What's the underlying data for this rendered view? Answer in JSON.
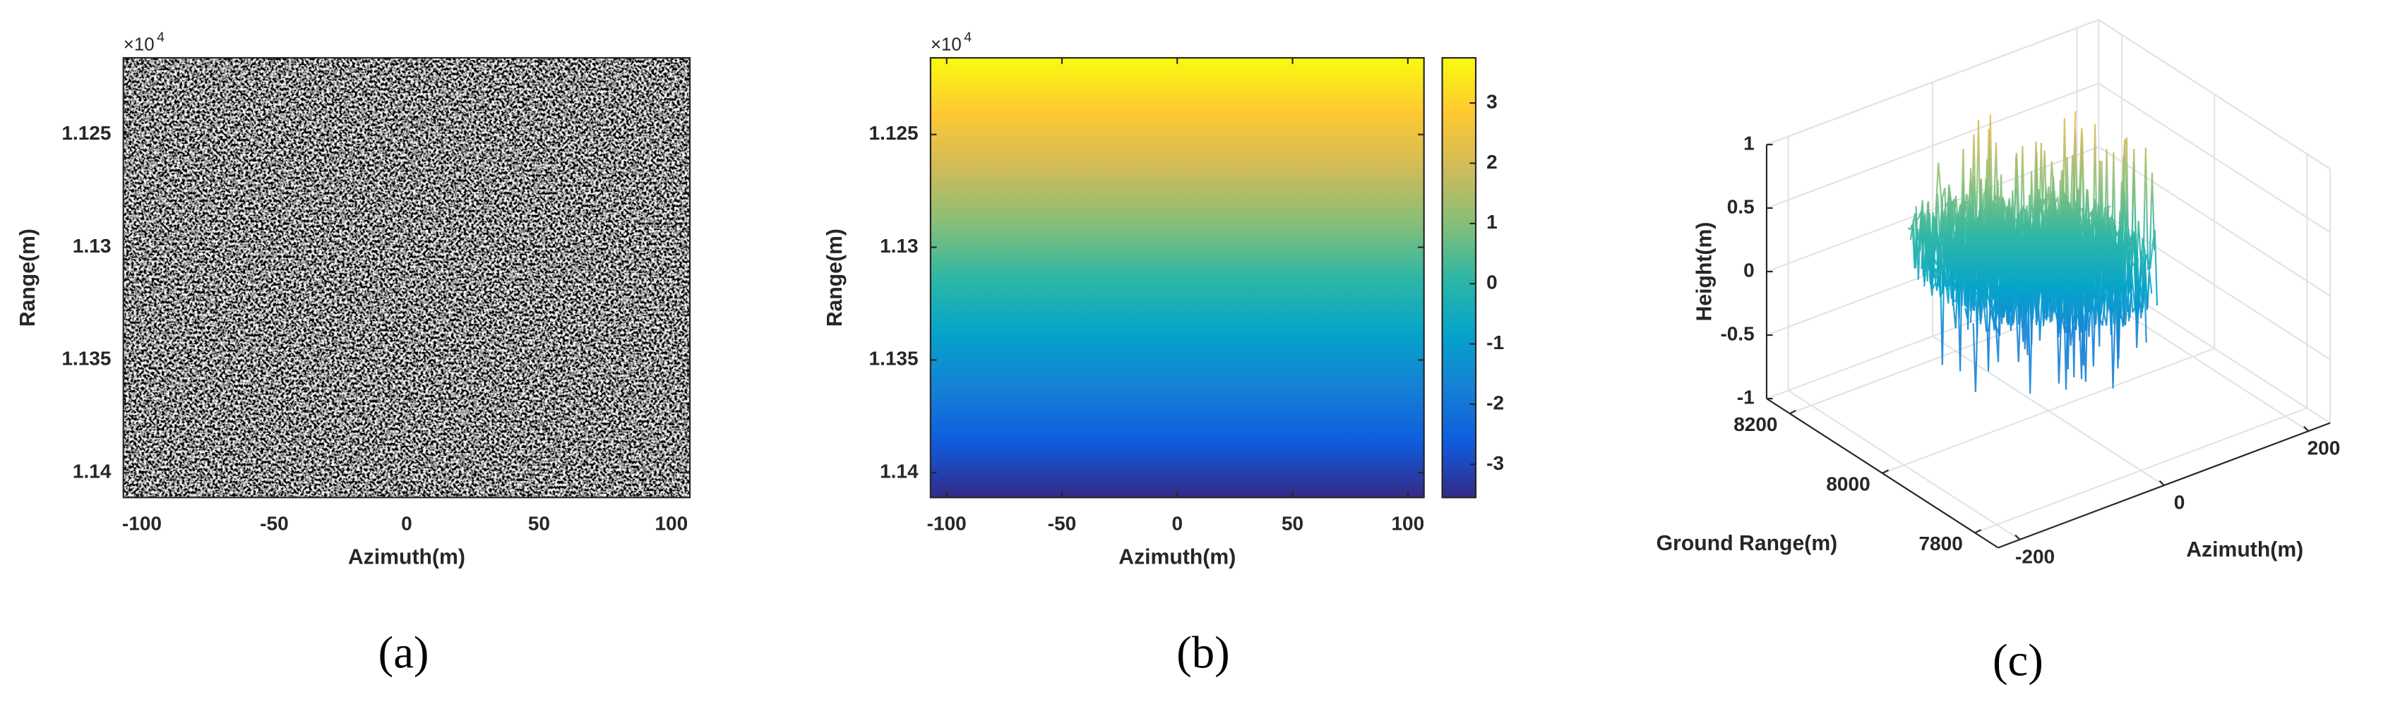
{
  "chart_data": [
    {
      "type": "image",
      "caption": "(a)",
      "xlabel": "Azimuth(m)",
      "ylabel": "Range(m)",
      "y_multiplier": "×10",
      "y_multiplier_exponent": "4",
      "xlim": [
        -107,
        107
      ],
      "xticks": [
        -100,
        -50,
        0,
        50,
        100
      ],
      "ylim": [
        1.1411,
        1.1216
      ],
      "yticks": [
        1.125,
        1.13,
        1.135,
        1.14
      ],
      "colormap": "gray"
    },
    {
      "type": "heatmap",
      "caption": "(b)",
      "xlabel": "Azimuth(m)",
      "ylabel": "Range(m)",
      "y_multiplier": "×10",
      "y_multiplier_exponent": "4",
      "xlim": [
        -107,
        107
      ],
      "xticks": [
        -100,
        -50,
        0,
        50,
        100
      ],
      "ylim": [
        1.1411,
        1.1216
      ],
      "yticks": [
        1.125,
        1.13,
        1.135,
        1.14
      ],
      "colormap": [
        "#352a87",
        "#0f5cdd",
        "#1481d6",
        "#06a4ca",
        "#2eb7a4",
        "#87bf77",
        "#d1bb59",
        "#fec832",
        "#f9fb0e"
      ],
      "clim": [
        -3.55,
        3.75
      ],
      "cticks": [
        -3,
        -2,
        -1,
        0,
        1,
        2,
        3
      ]
    },
    {
      "type": "surface3d",
      "caption": "(c)",
      "xlabel": "Ground Range(m)",
      "ylabel": "Azimuth(m)",
      "zlabel": "Height(m)",
      "xlim": [
        8250,
        7750
      ],
      "xticks": [
        7800,
        8000,
        8200
      ],
      "ylim": [
        -230,
        230
      ],
      "yticks": [
        -200,
        0,
        200
      ],
      "zlim": [
        -1,
        1
      ],
      "zticks": [
        -1,
        -0.5,
        0,
        0.5,
        1
      ],
      "grid": true,
      "colormap": [
        "#1481d6",
        "#06a4ca",
        "#2eb7a4",
        "#87bf77",
        "#d1bb59",
        "#fec832"
      ]
    }
  ]
}
